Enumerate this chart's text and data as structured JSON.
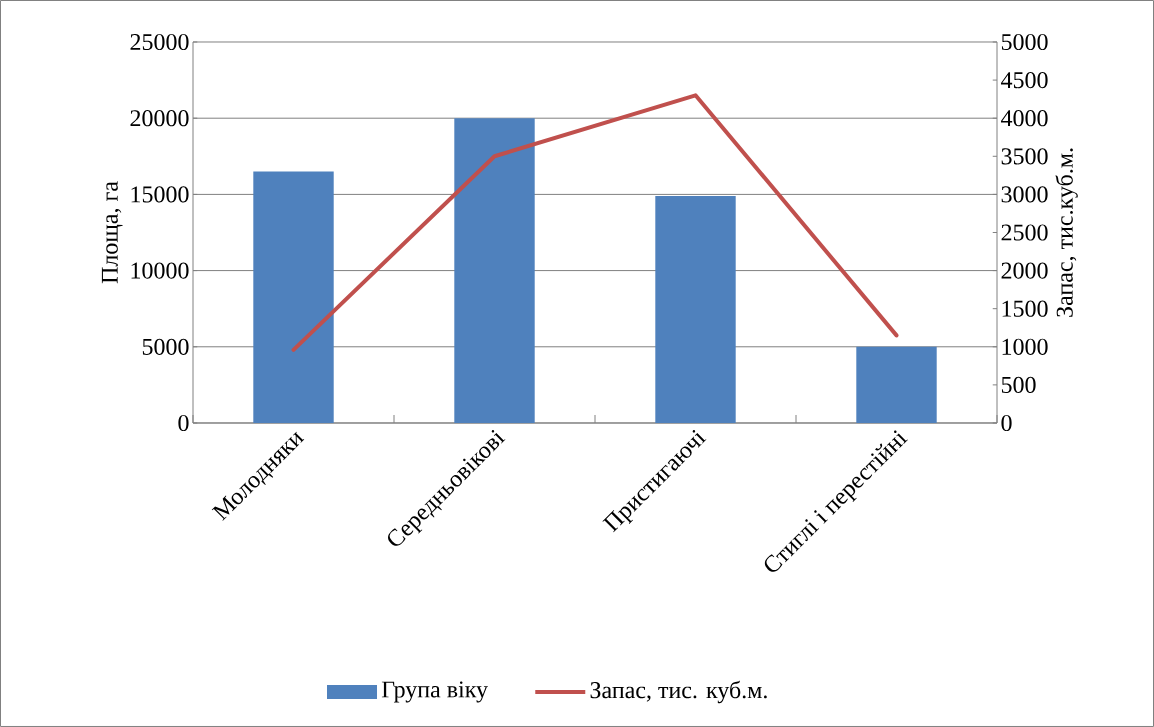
{
  "chart_data": {
    "type": "bar",
    "categories": [
      "Молодняки",
      "Середньовікові",
      "Пристигаючі",
      "Стиглі і перестійні"
    ],
    "series": [
      {
        "name": "Група віку",
        "color": "#4f81bd",
        "values": [
          16500,
          20000,
          14900,
          5000
        ]
      },
      {
        "name": "Запас, тис. куб.м.",
        "type": "line",
        "axis": "y2",
        "color": "#c0504d",
        "values": [
          960,
          3500,
          4300,
          1150
        ]
      }
    ],
    "ylabel": "Площа, га",
    "y2label": "Запас, тис.куб.м.",
    "ylim": [
      0,
      25000
    ],
    "yticks": [
      0,
      5000,
      10000,
      15000,
      20000,
      25000
    ],
    "y2lim": [
      0,
      5000
    ],
    "y2ticks": [
      0,
      500,
      1000,
      1500,
      2000,
      2500,
      3000,
      3500,
      4000,
      4500,
      5000
    ],
    "grid": "y",
    "legend": "bottom"
  }
}
